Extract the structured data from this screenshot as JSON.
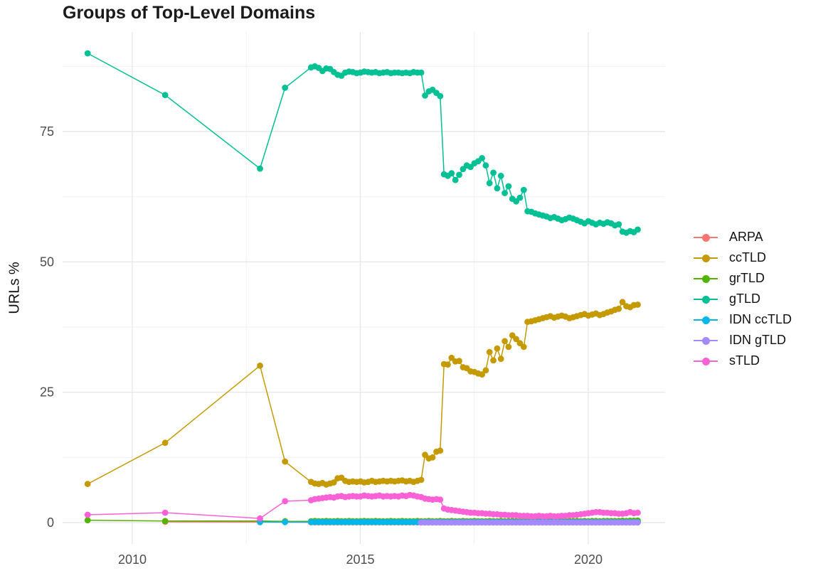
{
  "chart_data": {
    "type": "line",
    "title": "Groups of Top-Level Domains",
    "xlabel": "",
    "ylabel": "URLs %",
    "grid": "on",
    "legend_position": "right",
    "xlim": [
      2008.45,
      2021.73
    ],
    "ylim": [
      0,
      90
    ],
    "x_ticks": [
      {
        "value": 2010,
        "label": "2010"
      },
      {
        "value": 2015,
        "label": "2015"
      },
      {
        "value": 2020,
        "label": "2020"
      }
    ],
    "y_ticks": [
      {
        "value": 0,
        "label": "0"
      },
      {
        "value": 25,
        "label": "25"
      },
      {
        "value": 50,
        "label": "50"
      },
      {
        "value": 75,
        "label": "75"
      }
    ],
    "x_minor": [
      2012.5,
      2017.5
    ],
    "y_minor": [
      12.5,
      37.5,
      62.5,
      87.5
    ],
    "colors": {
      "grid_major": "#e4e4e4",
      "grid_minor": "#efefef",
      "tick_text": "#4d4d4d",
      "title_text": "#1a1a1a"
    },
    "series": [
      {
        "name": "ARPA",
        "color": "#F8766D",
        "points": [
          [
            2010.72,
            0.15
          ],
          [
            2012.8,
            0.1
          ]
        ],
        "dense": {
          "start": 2013.92,
          "step": 0.0833,
          "count": 87,
          "const": 0.05
        }
      },
      {
        "name": "ccTLD",
        "color": "#C49A00",
        "points": [
          [
            2009.02,
            7.4
          ],
          [
            2010.72,
            15.3
          ],
          [
            2012.8,
            30.1
          ],
          [
            2013.35,
            11.7
          ]
        ],
        "dense": {
          "start": 2013.92,
          "step": 0.0833,
          "values": [
            7.8,
            7.5,
            7.4,
            7.6,
            7.3,
            7.5,
            7.7,
            8.5,
            8.6,
            8.0,
            7.8,
            7.9,
            7.8,
            7.9,
            7.7,
            7.8,
            8.0,
            7.8,
            7.9,
            8.0,
            7.9,
            8.0,
            7.9,
            8.0,
            8.1,
            7.9,
            8.0,
            7.8,
            8.0,
            8.2,
            13.0,
            12.3,
            12.5,
            13.6,
            13.8,
            30.4,
            30.3,
            31.6,
            30.9,
            31.0,
            29.8,
            29.6,
            29.0,
            28.9,
            28.6,
            28.4,
            29.2,
            32.7,
            31.1,
            33.4,
            31.4,
            34.8,
            33.7,
            35.9,
            35.2,
            34.4,
            33.7,
            38.5,
            38.6,
            38.8,
            39.0,
            39.2,
            39.4,
            39.6,
            39.3,
            39.5,
            39.7,
            39.5,
            39.2,
            39.4,
            39.6,
            39.8,
            40.0,
            39.7,
            39.9,
            40.1,
            39.8,
            40.0,
            40.3,
            40.5,
            40.8,
            41.0,
            42.3,
            41.5,
            41.3,
            41.7,
            41.8
          ]
        }
      },
      {
        "name": "grTLD",
        "color": "#53B400",
        "points": [
          [
            2009.02,
            0.45
          ],
          [
            2010.72,
            0.3
          ],
          [
            2012.8,
            0.3
          ],
          [
            2013.35,
            0.25
          ]
        ],
        "dense": {
          "start": 2013.92,
          "step": 0.0833,
          "values": [
            0.25,
            0.3,
            0.25,
            0.25,
            0.3,
            0.25,
            0.25,
            0.3,
            0.25,
            0.25,
            0.3,
            0.25,
            0.25,
            0.25,
            0.3,
            0.25,
            0.25,
            0.3,
            0.25,
            0.25,
            0.25,
            0.3,
            0.25,
            0.25,
            0.3,
            0.25,
            0.25,
            0.25,
            0.3,
            0.25,
            0.25,
            0.3,
            0.25,
            0.25,
            0.3,
            0.25,
            0.25,
            0.3,
            0.25,
            0.25,
            0.3,
            0.25,
            0.25,
            0.3,
            0.25,
            0.25,
            0.25,
            0.3,
            0.25,
            0.25,
            0.3,
            0.25,
            0.25,
            0.3,
            0.25,
            0.25,
            0.3,
            0.25,
            0.25,
            0.25,
            0.3,
            0.25,
            0.25,
            0.3,
            0.25,
            0.25,
            0.3,
            0.25,
            0.3,
            0.25,
            0.3,
            0.25,
            0.3,
            0.25,
            0.3,
            0.3,
            0.25,
            0.3,
            0.3,
            0.3,
            0.3,
            0.3,
            0.35,
            0.3,
            0.35,
            0.35,
            0.4
          ]
        }
      },
      {
        "name": "gTLD",
        "color": "#00C094",
        "points": [
          [
            2009.02,
            90.0
          ],
          [
            2010.72,
            82.0
          ],
          [
            2012.8,
            67.9
          ],
          [
            2013.35,
            83.4
          ]
        ],
        "dense": {
          "start": 2013.92,
          "step": 0.0833,
          "values": [
            87.3,
            87.5,
            87.2,
            86.6,
            87.1,
            87.0,
            86.4,
            85.9,
            85.7,
            86.3,
            86.5,
            86.4,
            86.2,
            86.3,
            86.5,
            86.4,
            86.3,
            86.4,
            86.2,
            86.3,
            86.4,
            86.2,
            86.3,
            86.3,
            86.2,
            86.3,
            86.2,
            86.4,
            86.3,
            86.3,
            81.9,
            82.7,
            83.0,
            82.4,
            81.8,
            66.8,
            66.5,
            67.0,
            65.7,
            66.7,
            67.8,
            68.5,
            68.2,
            68.9,
            69.3,
            69.9,
            68.5,
            65.1,
            67.1,
            64.1,
            66.5,
            63.2,
            64.5,
            62.1,
            61.6,
            62.3,
            63.8,
            59.7,
            59.6,
            59.3,
            59.1,
            58.9,
            58.7,
            58.4,
            58.6,
            58.3,
            58.0,
            58.2,
            58.5,
            58.3,
            58.0,
            57.7,
            57.4,
            57.8,
            57.5,
            57.2,
            57.5,
            57.3,
            57.6,
            57.4,
            57.0,
            57.2,
            55.8,
            55.6,
            55.9,
            55.7,
            56.2
          ]
        }
      },
      {
        "name": "IDN ccTLD",
        "color": "#00B6EB",
        "points": [
          [
            2012.8,
            0.1
          ],
          [
            2013.35,
            0.1
          ]
        ],
        "dense": {
          "start": 2013.92,
          "step": 0.0833,
          "count": 87,
          "const": 0.1
        }
      },
      {
        "name": "IDN gTLD",
        "color": "#A58AFF",
        "points": [],
        "dense": {
          "start": 2016.33,
          "step": 0.0833,
          "count": 58,
          "const": 0.02
        }
      },
      {
        "name": "sTLD",
        "color": "#FB61D7",
        "points": [
          [
            2009.02,
            1.5
          ],
          [
            2010.72,
            1.9
          ],
          [
            2012.8,
            0.8
          ],
          [
            2013.35,
            4.1
          ]
        ],
        "dense": {
          "start": 2013.92,
          "step": 0.0833,
          "values": [
            4.3,
            4.5,
            4.6,
            4.7,
            4.8,
            4.9,
            4.8,
            5.0,
            5.1,
            4.9,
            5.0,
            5.1,
            5.0,
            5.0,
            5.2,
            5.1,
            5.0,
            5.1,
            5.2,
            5.0,
            5.1,
            5.0,
            5.1,
            5.0,
            5.2,
            5.1,
            5.3,
            5.2,
            5.0,
            4.9,
            4.6,
            4.5,
            4.4,
            4.5,
            4.4,
            2.7,
            2.5,
            2.4,
            2.3,
            2.2,
            2.1,
            2.0,
            1.9,
            1.9,
            1.8,
            1.8,
            1.7,
            1.7,
            1.6,
            1.6,
            1.5,
            1.5,
            1.4,
            1.4,
            1.4,
            1.3,
            1.3,
            1.3,
            1.2,
            1.2,
            1.3,
            1.2,
            1.2,
            1.3,
            1.2,
            1.2,
            1.3,
            1.3,
            1.4,
            1.4,
            1.5,
            1.6,
            1.7,
            1.8,
            1.9,
            2.0,
            2.0,
            1.9,
            1.9,
            1.8,
            1.8,
            1.7,
            1.7,
            1.8,
            2.0,
            1.8,
            1.9
          ]
        }
      }
    ]
  }
}
